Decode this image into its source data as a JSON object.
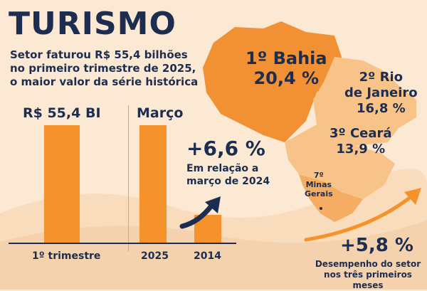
{
  "title": "TURISMO",
  "subtitle_lines": [
    "Setor faturou R$ 55,4 bilhões",
    "no primeiro trimestre de 2025,",
    "o maior valor da série histórica"
  ],
  "colors": {
    "bar": "#f5922b",
    "text": "#1d2d4f",
    "background": "#fbe9d4",
    "map_dark": "#f29034",
    "map_light": "#f8c389",
    "arrow": "#1d2d4f"
  },
  "left_panel": {
    "value_label": "R$ 55,4 BI",
    "category": "1º trimestre"
  },
  "middle_panel": {
    "heading": "Março",
    "change": "+6,6 %",
    "note_lines": [
      "Em relação a",
      "março de 2024"
    ]
  },
  "right_panel": {
    "change": "+5,8 %",
    "note_lines": [
      "Desempenho do setor",
      "nos três primeiros meses"
    ]
  },
  "states": [
    {
      "rank": "1º Bahia",
      "value": "20,4 %"
    },
    {
      "rank": "2º Rio",
      "rank2": "de Janeiro",
      "value": "16,8 %"
    },
    {
      "rank": "3º Ceará",
      "value": "13,9 %"
    },
    {
      "rank": "7º",
      "rank2": "Minas",
      "rank3": "Gerais"
    }
  ],
  "chart_data": {
    "type": "bar",
    "title": "TURISMO",
    "categories": [
      "1º trimestre",
      "2025",
      "2014"
    ],
    "values": [
      55.4,
      55.4,
      13
    ],
    "annotations": [
      "R$ 55,4 BI",
      "Março",
      "+6,6 %",
      "+5,8 %"
    ]
  }
}
